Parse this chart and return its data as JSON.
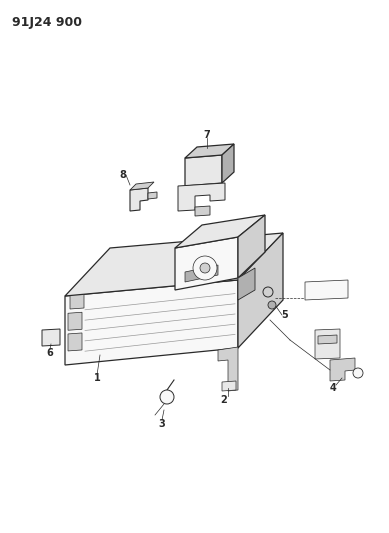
{
  "title": "91J24 900",
  "bg_color": "#ffffff",
  "line_color": "#2a2a2a",
  "label_color": "#1a1a1a",
  "figsize": [
    3.89,
    5.33
  ],
  "dpi": 100,
  "lw_main": 0.9,
  "lw_thin": 0.5,
  "gray_face": "#e8e8e8",
  "gray_mid": "#d0d0d0",
  "gray_dark": "#b0b0b0",
  "white_face": "#f8f8f8"
}
